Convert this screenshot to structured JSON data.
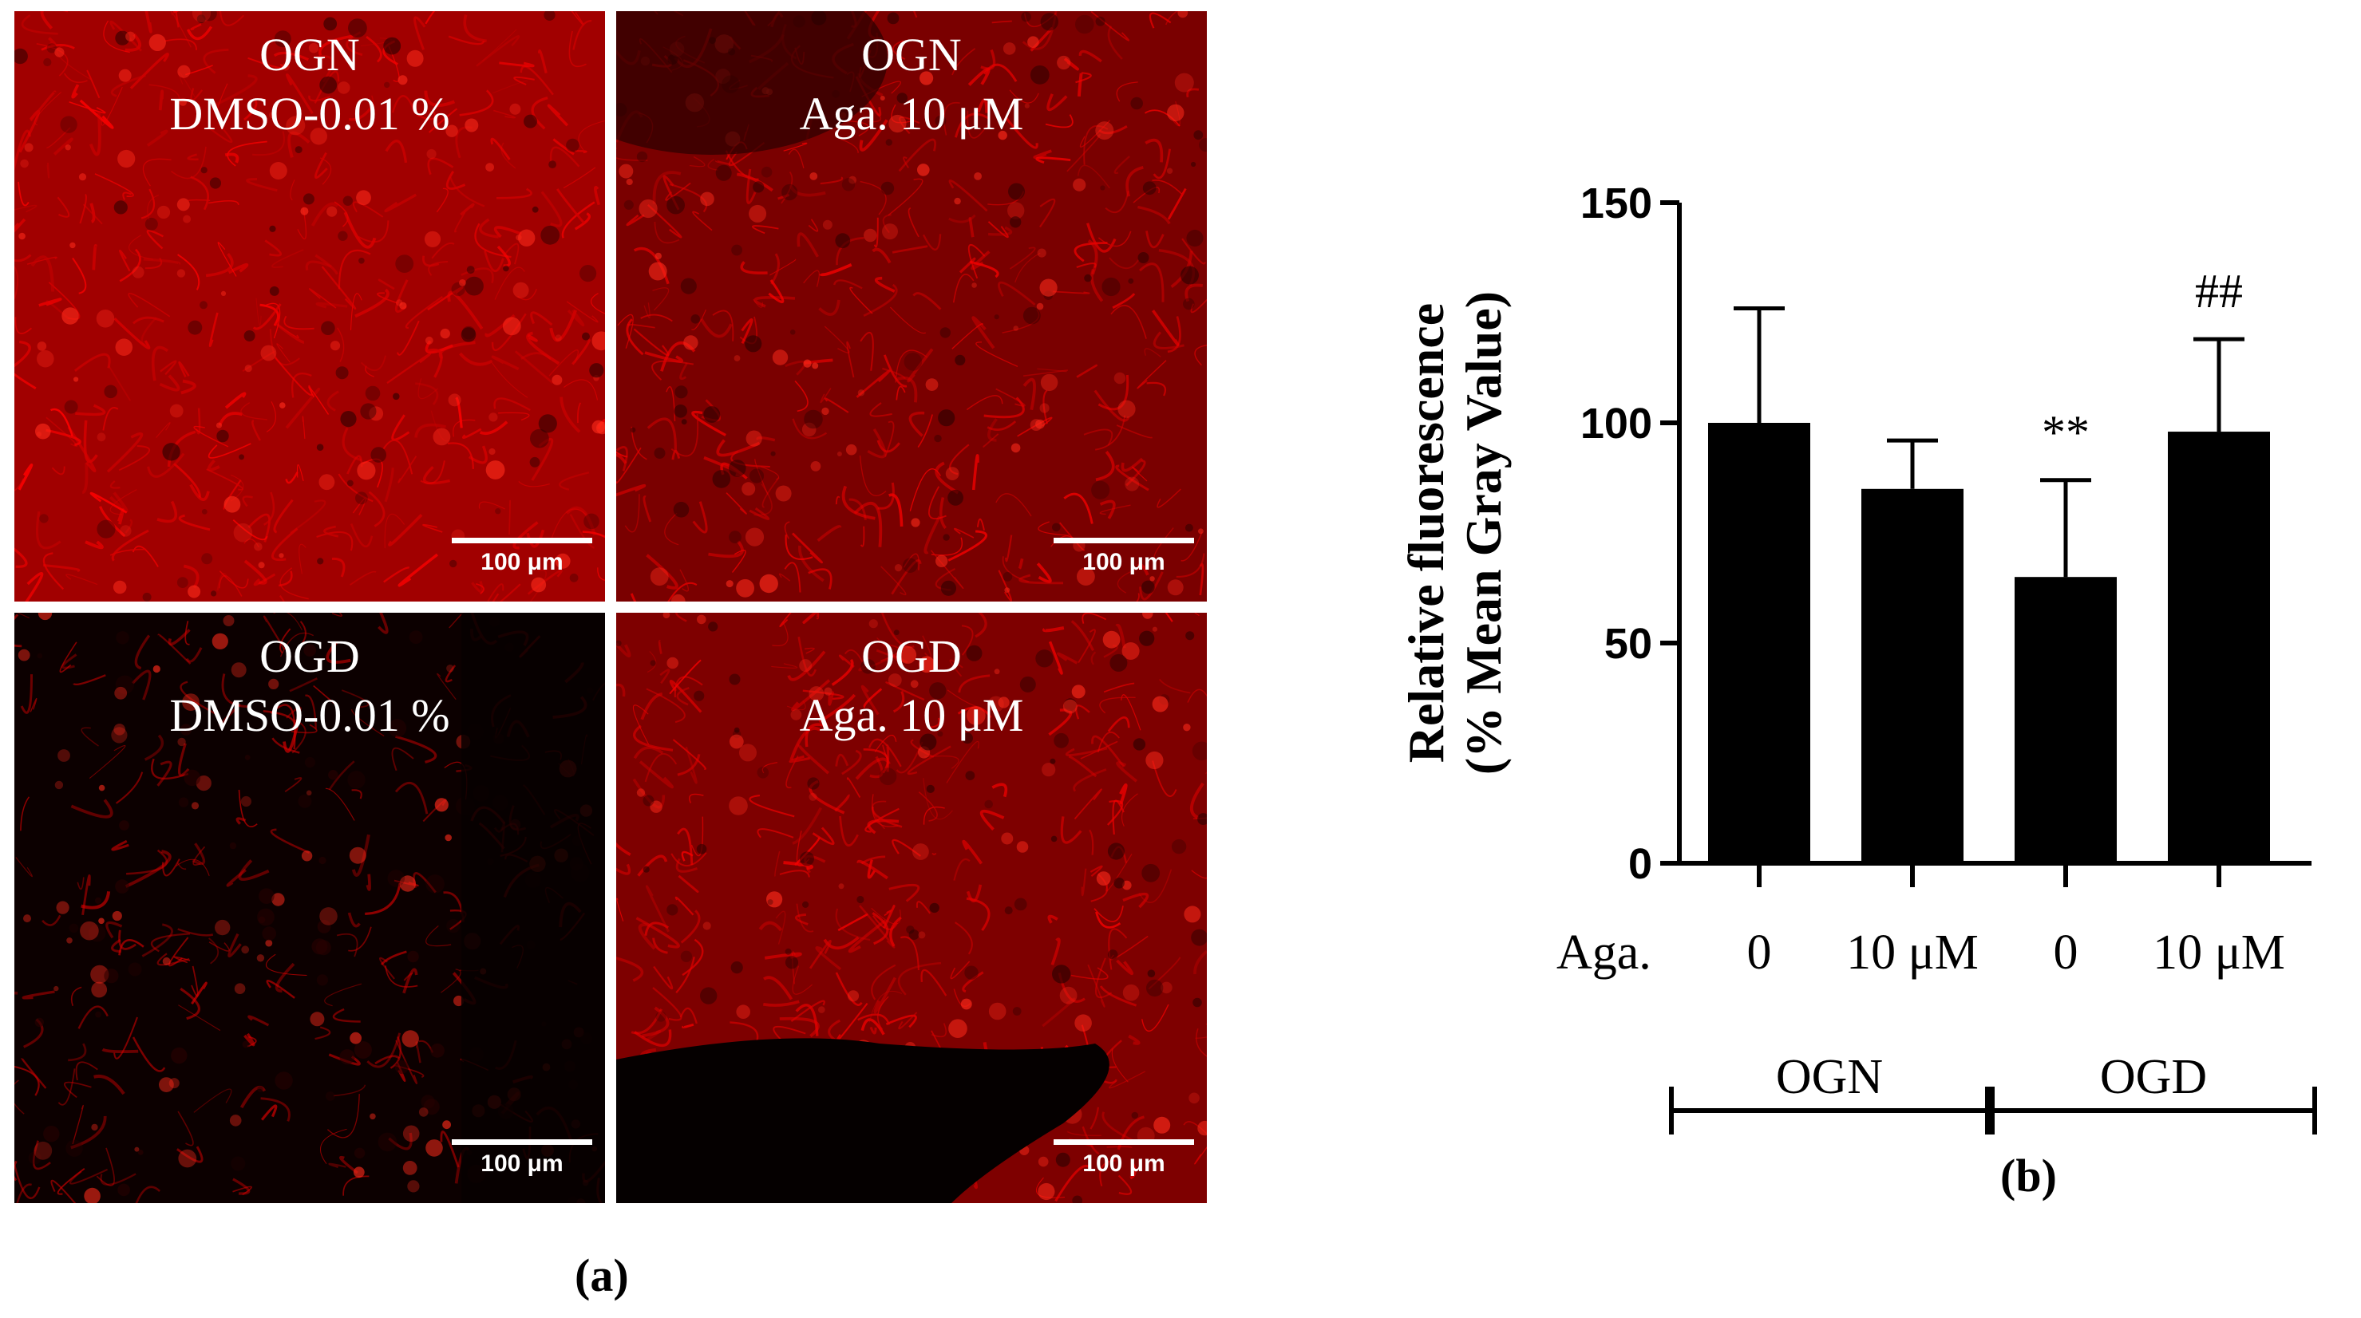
{
  "figure_labels": {
    "a": "(a)",
    "b": "(b)"
  },
  "micrographs": [
    {
      "line1": "OGN",
      "line2": "DMSO-0.01 %",
      "scale": "100 μm"
    },
    {
      "line1": "OGN",
      "line2": "Aga. 10 μM",
      "scale": "100 μm"
    },
    {
      "line1": "OGD",
      "line2": "DMSO-0.01 %",
      "scale": "100 μm"
    },
    {
      "line1": "OGD",
      "line2": "Aga. 10 μM",
      "scale": "100 μm"
    }
  ],
  "chart_data": {
    "type": "bar",
    "ylabel_line1": "Relative fluorescence",
    "ylabel_line2": "(% Mean Gray Value)",
    "ylim": [
      0,
      150
    ],
    "yticks": [
      "0",
      "50",
      "100",
      "150"
    ],
    "row_label": "Aga.",
    "categories": [
      "0",
      "10 μM",
      "0",
      "10 μM"
    ],
    "groups": [
      {
        "name": "OGN",
        "span": [
          0,
          1
        ]
      },
      {
        "name": "OGD",
        "span": [
          2,
          3
        ]
      }
    ],
    "values": [
      100,
      85,
      65,
      98
    ],
    "errors": [
      26,
      11,
      22,
      21
    ],
    "annotations": [
      "",
      "",
      "**",
      "##"
    ],
    "bar_color": "#000000"
  }
}
